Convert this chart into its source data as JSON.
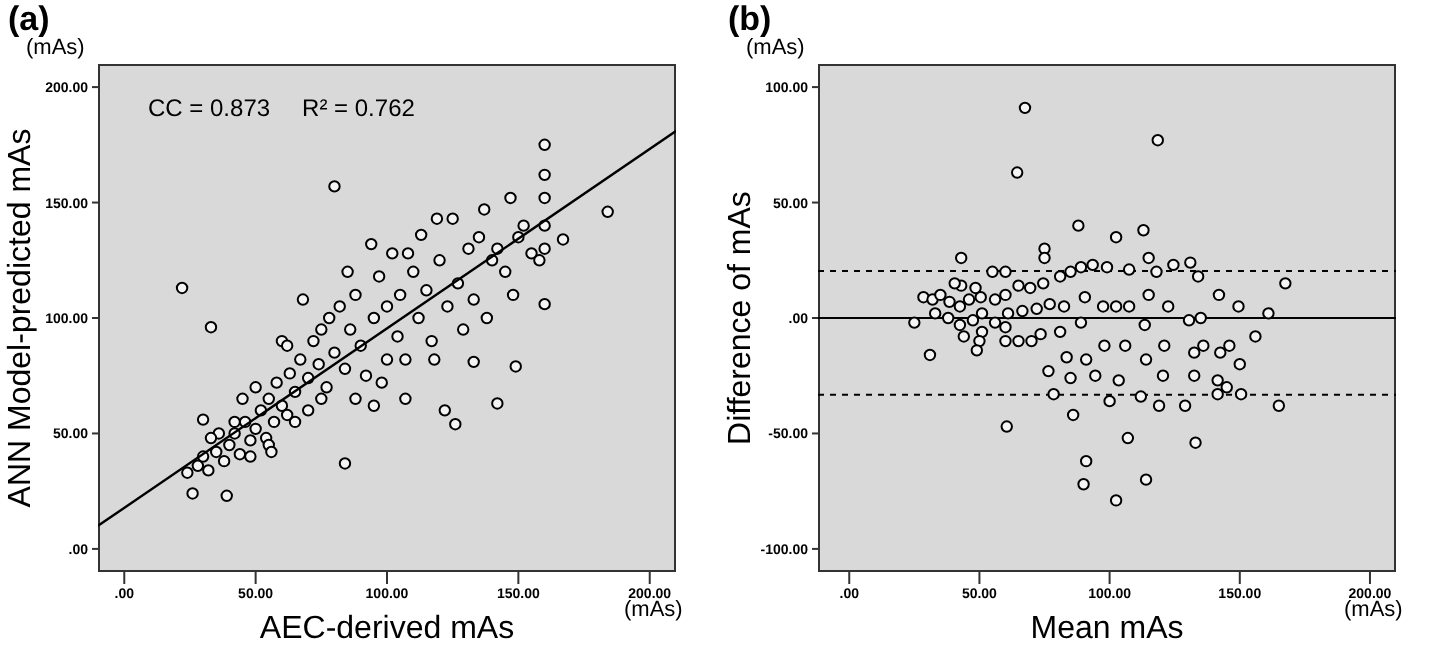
{
  "chart_data": [
    {
      "type": "scatter",
      "title": "(a)",
      "xlabel": "AEC-derived mAs",
      "ylabel": "ANN Model-predicted mAs",
      "annotations": [
        "(mAs)",
        "(mAs)",
        "CC = 0.873",
        "R² = 0.762"
      ],
      "xlim": [
        -10,
        210
      ],
      "ylim": [
        -10,
        210
      ],
      "xticks": [
        {
          "value": 0,
          "label": ".00"
        },
        {
          "value": 50,
          "label": "50.00"
        },
        {
          "value": 100,
          "label": "100.00"
        },
        {
          "value": 150,
          "label": "150.00"
        },
        {
          "value": 200,
          "label": "200.00"
        }
      ],
      "yticks": [
        {
          "value": 0,
          "label": ".00"
        },
        {
          "value": 50,
          "label": "50.00"
        },
        {
          "value": 100,
          "label": "100.00"
        },
        {
          "value": 150,
          "label": "150.00"
        },
        {
          "value": 200,
          "label": "200.00"
        }
      ],
      "marker": "circle",
      "series": [
        {
          "type": "scatter",
          "color": "#000000",
          "x": [
            22,
            33,
            80,
            39,
            84,
            160,
            160,
            160,
            184,
            167,
            147,
            149,
            142,
            126,
            122,
            133,
            160,
            107,
            24,
            26,
            28,
            30,
            32,
            35,
            38,
            40,
            42,
            44,
            46,
            48,
            50,
            52,
            54,
            55,
            57,
            58,
            60,
            62,
            63,
            65,
            67,
            68,
            70,
            72,
            74,
            75,
            77,
            78,
            80,
            82,
            84,
            86,
            88,
            90,
            92,
            94,
            95,
            97,
            98,
            100,
            102,
            104,
            105,
            107,
            110,
            112,
            113,
            115,
            117,
            119,
            120,
            123,
            125,
            127,
            129,
            131,
            133,
            135,
            137,
            138,
            140,
            142,
            145,
            148,
            150,
            152,
            155,
            158,
            160,
            160,
            45,
            50,
            55,
            60,
            65,
            70,
            75,
            42,
            36,
            48,
            88,
            95,
            100,
            62,
            56,
            30,
            33,
            118,
            108,
            85
          ],
          "values": [
            113,
            96,
            157,
            23,
            37,
            175,
            162,
            152,
            146,
            134,
            152,
            79,
            63,
            54,
            60,
            81,
            106,
            65,
            33,
            24,
            36,
            40,
            34,
            42,
            38,
            45,
            50,
            41,
            55,
            47,
            52,
            60,
            48,
            65,
            55,
            72,
            62,
            58,
            76,
            68,
            82,
            108,
            74,
            90,
            80,
            95,
            70,
            100,
            85,
            105,
            78,
            95,
            110,
            88,
            75,
            132,
            100,
            118,
            72,
            105,
            128,
            92,
            110,
            82,
            120,
            100,
            136,
            112,
            90,
            143,
            125,
            105,
            143,
            115,
            95,
            130,
            108,
            135,
            147,
            100,
            125,
            130,
            120,
            110,
            135,
            140,
            128,
            125,
            140,
            130,
            65,
            70,
            45,
            90,
            55,
            60,
            65,
            55,
            50,
            40,
            65,
            62,
            82,
            88,
            42,
            56,
            48,
            82,
            128,
            120
          ]
        },
        {
          "type": "line",
          "color": "#000000",
          "marker": "none",
          "x": [
            -10,
            210
          ],
          "values": [
            10,
            181
          ]
        }
      ]
    },
    {
      "type": "scatter",
      "title": "(b)",
      "xlabel": "Mean mAs",
      "ylabel": "Difference of mAs",
      "annotations": [
        "(mAs)",
        "(mAs)"
      ],
      "xlim": [
        -12,
        210
      ],
      "ylim": [
        -110,
        110
      ],
      "xticks": [
        {
          "value": 0,
          "label": ".00"
        },
        {
          "value": 50,
          "label": "50.00"
        },
        {
          "value": 100,
          "label": "100.00"
        },
        {
          "value": 150,
          "label": "150.00"
        },
        {
          "value": 200,
          "label": "200.00"
        }
      ],
      "yticks": [
        {
          "value": -100,
          "label": "-100.00"
        },
        {
          "value": -50,
          "label": "-50.00"
        },
        {
          "value": 0,
          "label": ".00"
        },
        {
          "value": 50,
          "label": "50.00"
        },
        {
          "value": 100,
          "label": "100.00"
        }
      ],
      "marker": "circle",
      "ref_lines": [
        {
          "axis": "y",
          "value": 0,
          "color": "#000000",
          "line_style": "solid"
        },
        {
          "axis": "y",
          "value": 20.4,
          "color": "#000000",
          "line_style": "dashed"
        },
        {
          "axis": "y",
          "value": -33.2,
          "color": "#000000",
          "line_style": "dashed"
        }
      ],
      "series": [
        {
          "type": "scatter",
          "color": "#000000",
          "x": [
            67.5,
            64.5,
            118.5,
            31,
            60.5,
            167.5,
            161,
            156,
            165,
            150.5,
            149.5,
            114,
            102.5,
            90,
            91,
            107,
            133,
            86,
            28.5,
            25,
            32,
            35,
            33,
            38.5,
            38,
            42.5,
            46,
            42.5,
            50.5,
            47.5,
            51,
            56,
            51,
            60,
            56,
            65,
            61,
            60,
            69.5,
            66.5,
            74.5,
            88,
            72,
            81,
            77,
            85,
            73.5,
            89,
            82.5,
            93.5,
            81,
            90.5,
            99,
            89,
            83.5,
            113,
            97.5,
            107.5,
            85,
            102.5,
            115,
            98,
            107.5,
            94.5,
            115,
            106,
            124.5,
            113.5,
            103.5,
            131,
            122.5,
            114,
            134,
            121,
            112,
            130.5,
            120.5,
            135,
            142,
            119,
            132.5,
            136,
            132.5,
            129,
            142.5,
            146,
            141.5,
            141.5,
            150,
            145,
            55,
            60,
            50,
            75,
            60,
            65,
            70,
            48.5,
            43,
            44,
            76.5,
            78.5,
            91,
            75,
            49,
            43,
            40.5,
            100,
            118,
            102.5
          ],
          "values": [
            91,
            63,
            77,
            -16,
            -47,
            15,
            2,
            -8,
            -38,
            -33,
            5,
            -70,
            -79,
            -72,
            -62,
            -52,
            -54,
            -42,
            9,
            -2,
            8,
            10,
            2,
            7,
            0,
            5,
            8,
            -3,
            9,
            -1,
            2,
            8,
            -6,
            10,
            -2,
            14,
            2,
            -4,
            13,
            3,
            15,
            40,
            4,
            18,
            6,
            20,
            -7,
            22,
            5,
            23,
            -6,
            9,
            22,
            -2,
            -17,
            38,
            5,
            21,
            -26,
            5,
            26,
            -12,
            5,
            -25,
            10,
            -12,
            23,
            -3,
            -27,
            24,
            5,
            -18,
            18,
            -12,
            -34,
            -1,
            -25,
            0,
            10,
            -38,
            -15,
            -12,
            -25,
            -38,
            -15,
            -12,
            -27,
            -33,
            -20,
            -30,
            20,
            20,
            -10,
            30,
            -10,
            -10,
            -10,
            13,
            14,
            -8,
            -23,
            -33,
            -18,
            26,
            -14,
            26,
            15,
            -36,
            20,
            35
          ]
        }
      ]
    }
  ]
}
